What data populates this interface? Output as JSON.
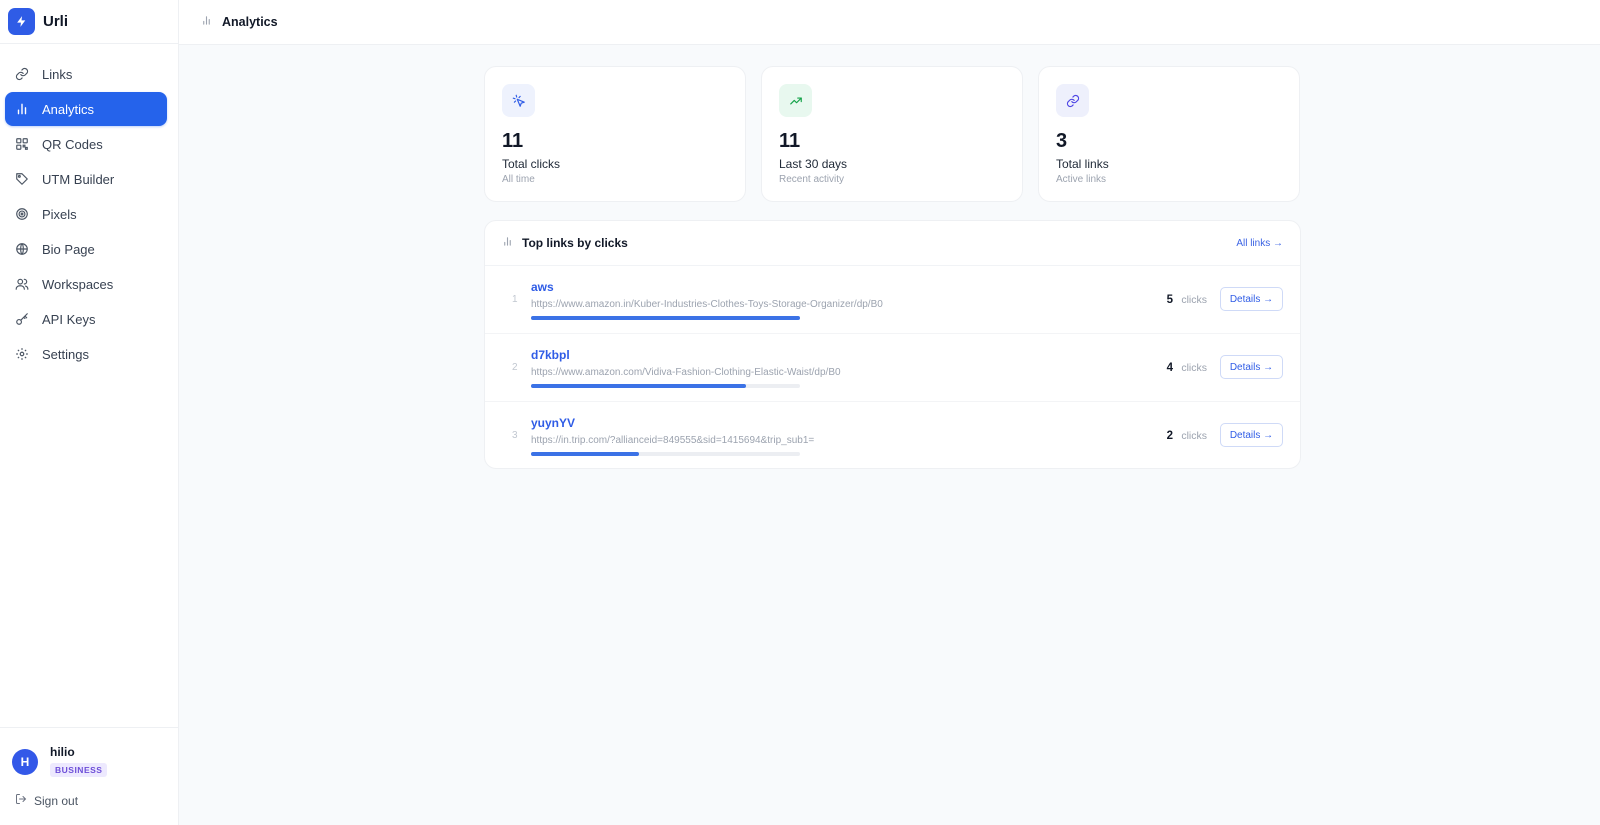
{
  "app": {
    "name": "Urli"
  },
  "sidebar": {
    "items": [
      {
        "label": "Links",
        "icon": "link-icon",
        "active": false
      },
      {
        "label": "Analytics",
        "icon": "bar-chart-icon",
        "active": true
      },
      {
        "label": "QR Codes",
        "icon": "qr-code-icon",
        "active": false
      },
      {
        "label": "UTM Builder",
        "icon": "tag-icon",
        "active": false
      },
      {
        "label": "Pixels",
        "icon": "target-icon",
        "active": false
      },
      {
        "label": "Bio Page",
        "icon": "globe-icon",
        "active": false
      },
      {
        "label": "Workspaces",
        "icon": "users-icon",
        "active": false
      },
      {
        "label": "API Keys",
        "icon": "key-icon",
        "active": false
      },
      {
        "label": "Settings",
        "icon": "gear-icon",
        "active": false
      }
    ]
  },
  "user": {
    "initial": "H",
    "name": "hilio",
    "plan": "BUSINESS"
  },
  "signout": {
    "label": "Sign out"
  },
  "header": {
    "title": "Analytics"
  },
  "stats": [
    {
      "value": "11",
      "label": "Total clicks",
      "sub": "All time",
      "icon": "cursor-click-icon",
      "icon_bg": "#eef2fd",
      "icon_color": "#2f5ce6"
    },
    {
      "value": "11",
      "label": "Last 30 days",
      "sub": "Recent activity",
      "icon": "trending-up-icon",
      "icon_bg": "#e8f8ef",
      "icon_color": "#16a34a"
    },
    {
      "value": "3",
      "label": "Total links",
      "sub": "Active links",
      "icon": "link-icon",
      "icon_bg": "#eef0fc",
      "icon_color": "#4f46e5"
    }
  ],
  "top_links": {
    "title": "Top links by clicks",
    "all_links_label": "All links →",
    "clicks_unit": "clicks",
    "details_label": "Details →",
    "rows": [
      {
        "rank": "1",
        "slug": "aws",
        "url": "https://www.amazon.in/Kuber-Industries-Clothes-Toys-Storage-Organizer/dp/B0",
        "clicks": "5",
        "share": 1.0
      },
      {
        "rank": "2",
        "slug": "d7kbpl",
        "url": "https://www.amazon.com/Vidiva-Fashion-Clothing-Elastic-Waist/dp/B0",
        "clicks": "4",
        "share": 0.8
      },
      {
        "rank": "3",
        "slug": "yuynYV",
        "url": "https://in.trip.com/?allianceid=849555&sid=1415694&trip_sub1=",
        "clicks": "2",
        "share": 0.4
      }
    ]
  },
  "colors": {
    "accent": "#2563eb",
    "bar": "#3b72e6"
  }
}
